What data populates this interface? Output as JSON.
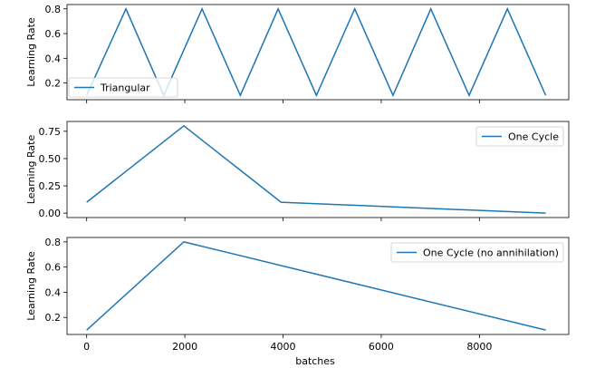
{
  "figure": {
    "line_color": "#1f77b4",
    "xlabel": "batches",
    "xticks": [
      0,
      2000,
      4000,
      6000,
      8000
    ]
  },
  "chart_data": [
    {
      "type": "line",
      "series": [
        {
          "name": "Triangular",
          "x": [
            0,
            800,
            1570,
            2350,
            3130,
            3900,
            4680,
            5460,
            6240,
            7010,
            7790,
            8570,
            9350
          ],
          "values": [
            0.1,
            0.8,
            0.1,
            0.8,
            0.1,
            0.8,
            0.1,
            0.8,
            0.1,
            0.8,
            0.1,
            0.8,
            0.1
          ]
        }
      ],
      "ylabel": "Learning Rate",
      "xlim": [
        -400,
        9820
      ],
      "ylim": [
        0.065,
        0.835
      ],
      "yticks": [
        0.2,
        0.4,
        0.6,
        0.8
      ],
      "ytick_labels": [
        "0.2",
        "0.4",
        "0.6",
        "0.8"
      ],
      "legend": "lower-left",
      "grid": false
    },
    {
      "type": "line",
      "series": [
        {
          "name": "One Cycle",
          "x": [
            0,
            1980,
            3960,
            9350
          ],
          "values": [
            0.1,
            0.8,
            0.1,
            0.0
          ]
        }
      ],
      "ylabel": "Learning Rate",
      "xlim": [
        -400,
        9820
      ],
      "ylim": [
        -0.04,
        0.84
      ],
      "yticks": [
        0.0,
        0.25,
        0.5,
        0.75
      ],
      "ytick_labels": [
        "0.00",
        "0.25",
        "0.50",
        "0.75"
      ],
      "legend": "upper-right",
      "grid": false
    },
    {
      "type": "line",
      "series": [
        {
          "name": "One Cycle (no annihilation)",
          "x": [
            0,
            1980,
            9350
          ],
          "values": [
            0.1,
            0.8,
            0.1
          ]
        }
      ],
      "ylabel": "Learning Rate",
      "xlim": [
        -400,
        9820
      ],
      "ylim": [
        0.065,
        0.835
      ],
      "yticks": [
        0.2,
        0.4,
        0.6,
        0.8
      ],
      "ytick_labels": [
        "0.2",
        "0.4",
        "0.6",
        "0.8"
      ],
      "legend": "upper-right",
      "grid": false
    }
  ]
}
